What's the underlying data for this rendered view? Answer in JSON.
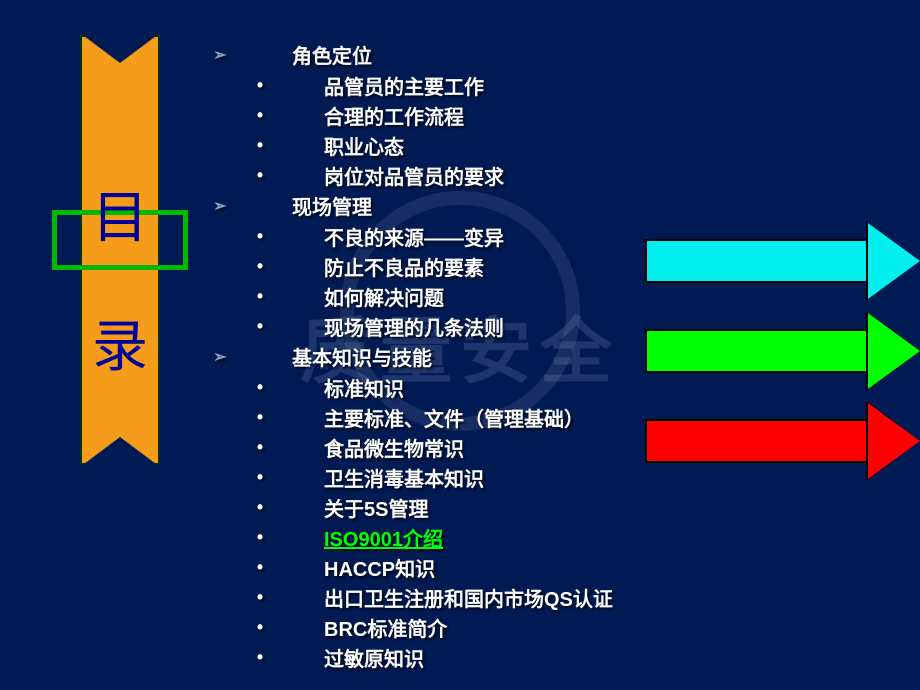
{
  "slide": {
    "background_color": "#001a53",
    "watermark_text": "质量安全",
    "watermark_color": "rgba(120,140,180,0.25)",
    "title": {
      "char1": "目",
      "char2": "录",
      "banner_color": "#f59c1a",
      "banner_border": "#003300",
      "ribbon_border": "#00b800",
      "text_color": "#000099",
      "font_size_pt": 40
    },
    "outline_text_color": "#ffffff",
    "outline_font_size_pt": 15,
    "outline_shadow": "2px 2px 2px rgba(0,0,0,0.7)",
    "sections": [
      {
        "heading": "角色定位",
        "items": [
          {
            "text": "品管员的主要工作"
          },
          {
            "text": "合理的工作流程"
          },
          {
            "text": "职业心态"
          },
          {
            "text": "岗位对品管员的要求"
          }
        ]
      },
      {
        "heading": "现场管理",
        "items": [
          {
            "text": "不良的来源——变异"
          },
          {
            "text": "防止不良品的要素"
          },
          {
            "text": "如何解决问题"
          },
          {
            "text": "现场管理的几条法则"
          }
        ]
      },
      {
        "heading": "基本知识与技能",
        "items": [
          {
            "text": "标准知识"
          },
          {
            "text": "主要标准、文件（管理基础）"
          },
          {
            "text": "食品微生物常识"
          },
          {
            "text": "卫生消毒基本知识"
          },
          {
            "text": "关于5S管理"
          },
          {
            "text": "ISO9001介绍",
            "link": true,
            "link_color": "#00ff00"
          },
          {
            "text": "HACCP知识"
          },
          {
            "text": "出口卫生注册和国内市场QS认证"
          },
          {
            "text": "BRC标准简介"
          },
          {
            "text": "过敏原知识"
          }
        ]
      }
    ],
    "arrows": [
      {
        "color": "#00f0f0"
      },
      {
        "color": "#00ff00"
      },
      {
        "color": "#ff0000"
      }
    ]
  }
}
